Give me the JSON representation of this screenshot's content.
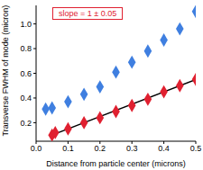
{
  "chart_data": {
    "type": "scatter",
    "xlabel": "Distance from particle center (microns)",
    "ylabel": "Transverse FWHM of mode (micron)",
    "xlim": [
      0,
      0.5
    ],
    "ylim": [
      0.05,
      1.15
    ],
    "xticks": [
      {
        "value": 0,
        "label": "0.0"
      },
      0.1,
      0.2,
      0.3,
      0.4,
      0.5
    ],
    "yticks": [
      0.2,
      0.4,
      0.6,
      0.8,
      {
        "value": 1,
        "label": "1.0"
      }
    ],
    "grid": false,
    "annotations": [
      {
        "text": "slope = 1 ± 0.05",
        "color": "#e02030"
      }
    ],
    "series": [
      {
        "type": "scatter",
        "color": "#3f7fe0",
        "marker": "diamond",
        "x": [
          0.03,
          0.05,
          0.1,
          0.15,
          0.2,
          0.25,
          0.3,
          0.35,
          0.4,
          0.45,
          0.5
        ],
        "values": [
          0.31,
          0.32,
          0.37,
          0.43,
          0.49,
          0.61,
          0.69,
          0.78,
          0.87,
          0.96,
          1.1
        ]
      },
      {
        "type": "line",
        "color": "#000000",
        "line_style": "solid",
        "x": [
          0.05,
          0.5
        ],
        "values": [
          0.1,
          0.55
        ]
      },
      {
        "type": "scatter",
        "color": "#e02030",
        "marker": "diamond",
        "x": [
          0.05,
          0.06,
          0.1,
          0.15,
          0.2,
          0.25,
          0.3,
          0.35,
          0.4,
          0.45,
          0.5
        ],
        "values": [
          0.1,
          0.12,
          0.15,
          0.2,
          0.24,
          0.29,
          0.34,
          0.39,
          0.45,
          0.5,
          0.55
        ]
      }
    ]
  }
}
